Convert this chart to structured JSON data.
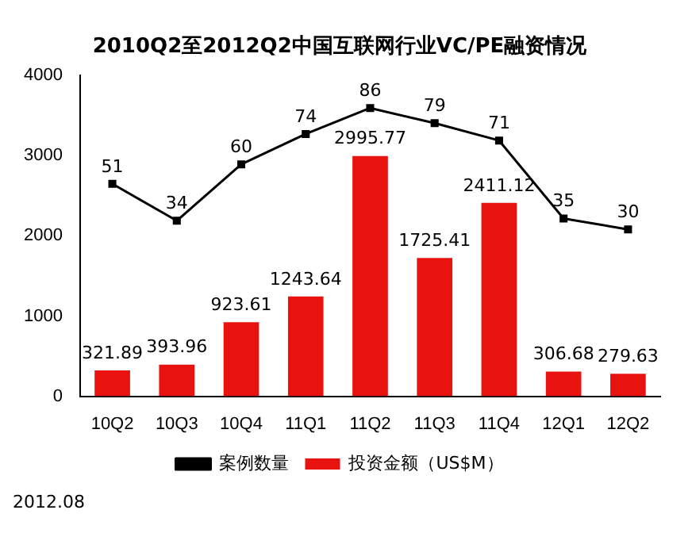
{
  "chart_data": {
    "type": "bar",
    "title": "2010Q2至2012Q2中国互联网行业VC/PE融资情况",
    "categories": [
      "10Q2",
      "10Q3",
      "10Q4",
      "11Q1",
      "11Q2",
      "11Q3",
      "11Q4",
      "12Q1",
      "12Q2"
    ],
    "series": [
      {
        "name": "投资金额（US$M）",
        "color": "#e8120f",
        "values": [
          321.89,
          393.96,
          923.61,
          1243.64,
          2995.77,
          1725.41,
          2411.12,
          306.68,
          279.63
        ]
      },
      {
        "name": "案例数量",
        "type": "line",
        "axis": "y2",
        "color": "#000000",
        "values": [
          51,
          34,
          60,
          74,
          86,
          79,
          71,
          35,
          30
        ]
      }
    ],
    "ylim": [
      0,
      4000
    ],
    "yticks": [
      0,
      1000,
      2000,
      3000,
      4000
    ],
    "y2lim": [
      -47,
      101
    ],
    "tick_labels": "xy",
    "data_labels": true,
    "grid": false,
    "legend": "bottom",
    "marker": "square",
    "line_style": "solid",
    "annotations": [
      "2012.08"
    ]
  }
}
